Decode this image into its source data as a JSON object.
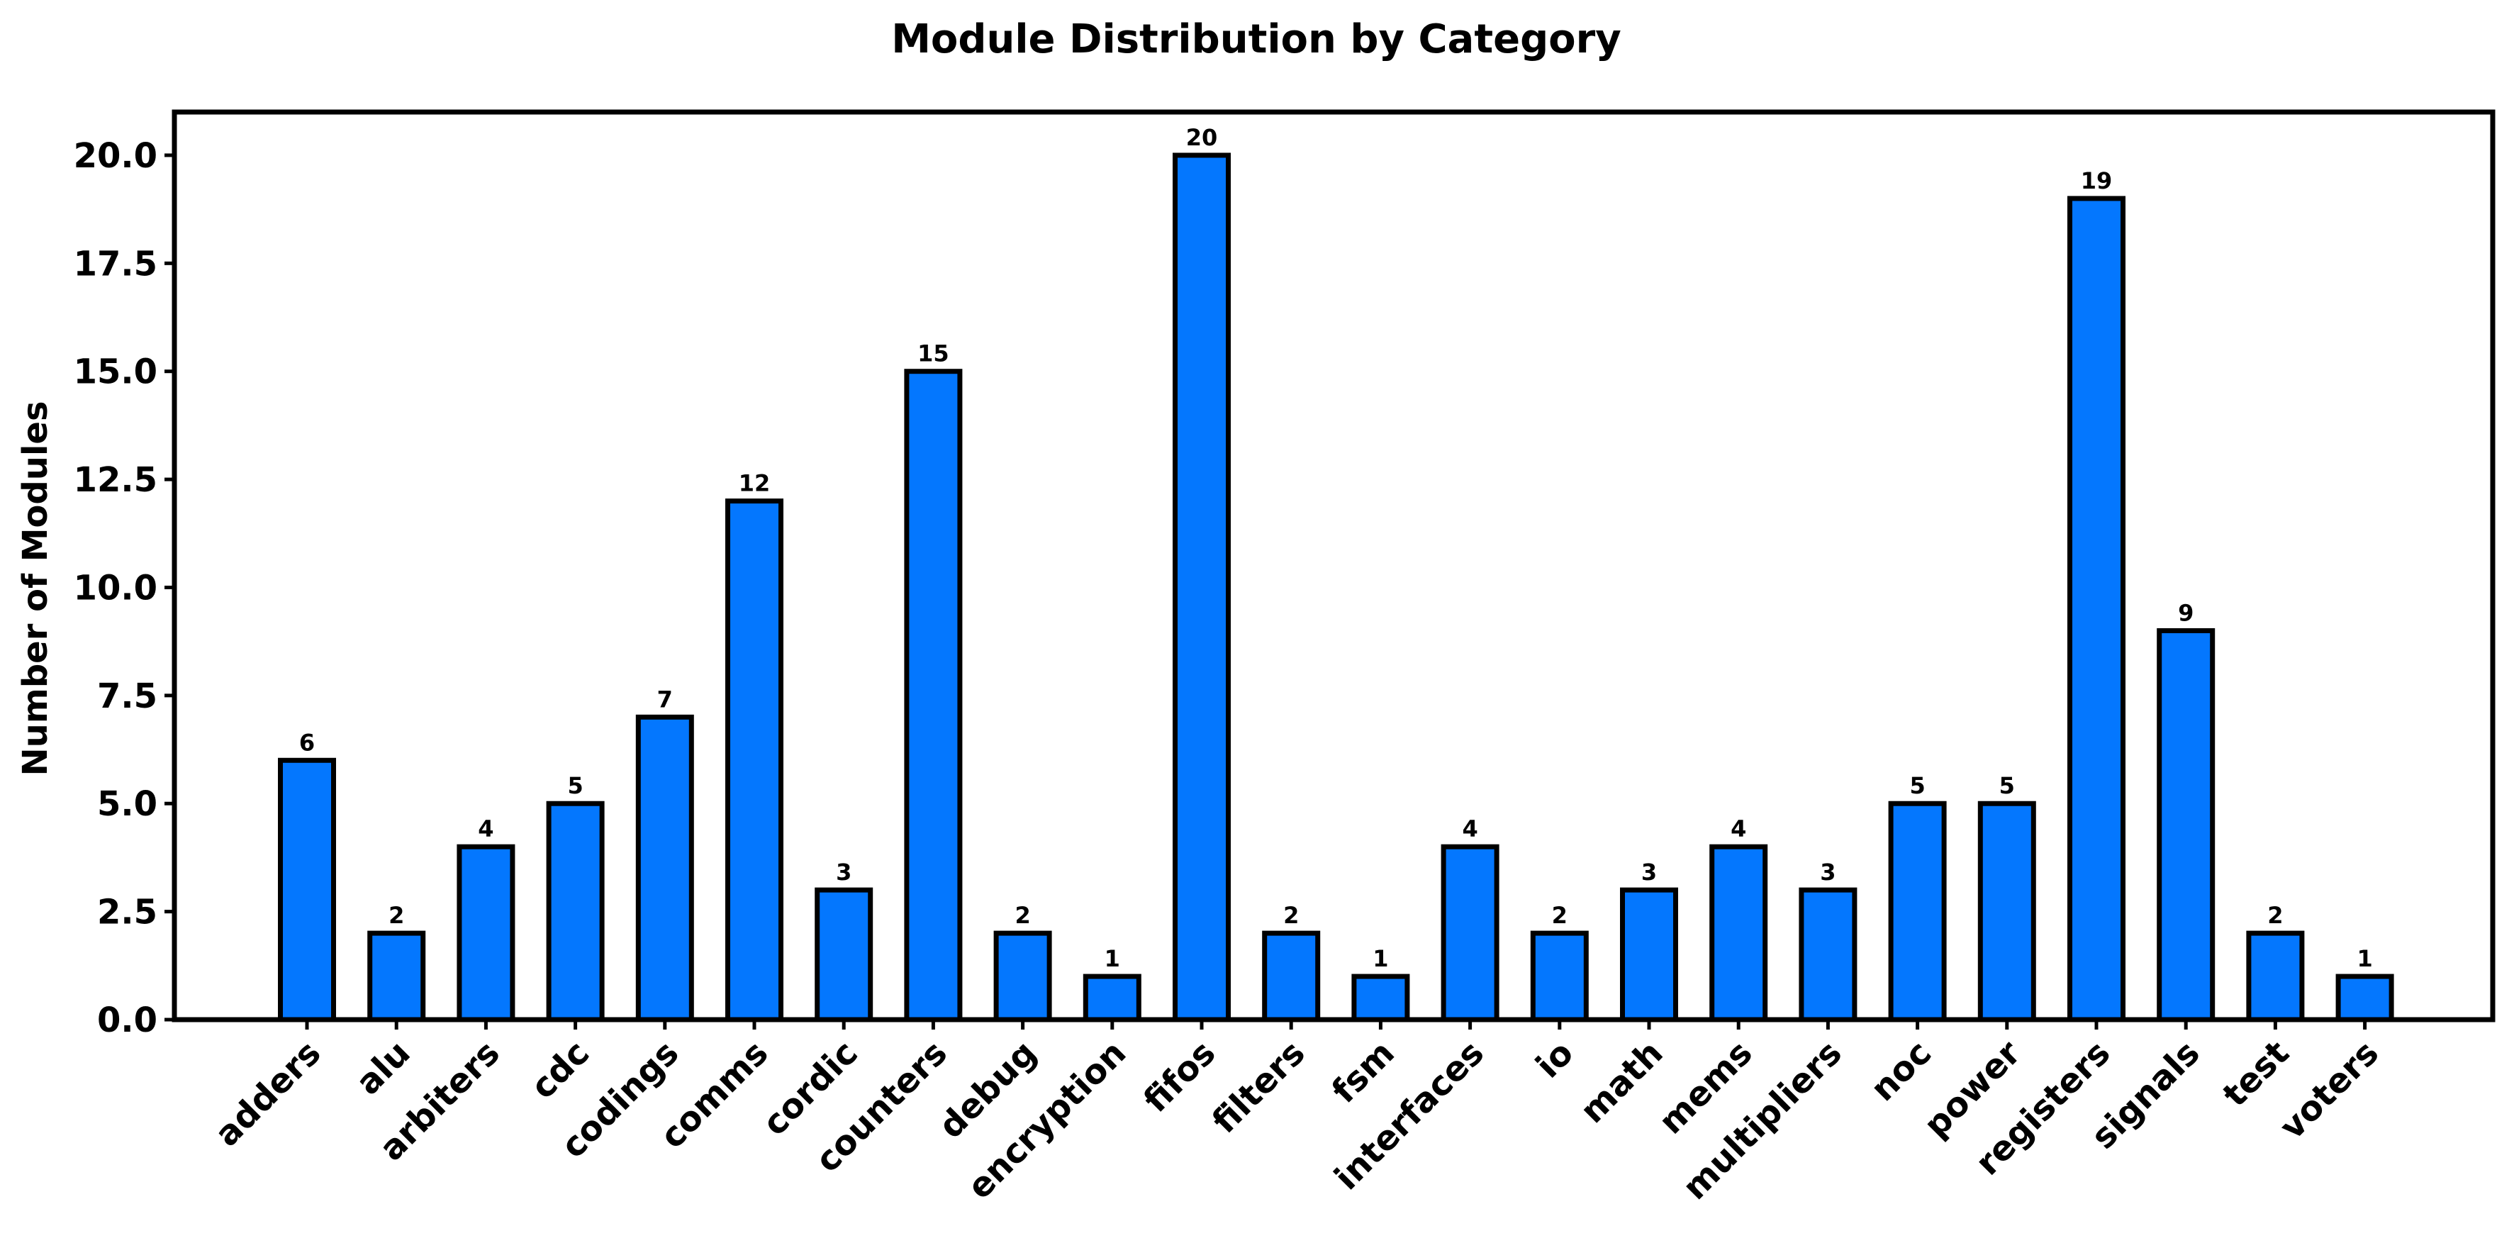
{
  "chart_data": {
    "type": "bar",
    "title": "Module Distribution by Category",
    "xlabel": "",
    "ylabel": "Number of Modules",
    "categories": [
      "adders",
      "alu",
      "arbiters",
      "cdc",
      "codings",
      "comms",
      "cordic",
      "counters",
      "debug",
      "encryption",
      "fifos",
      "filters",
      "fsm",
      "interfaces",
      "io",
      "math",
      "mems",
      "multipliers",
      "noc",
      "power",
      "registers",
      "signals",
      "test",
      "voters"
    ],
    "values": [
      6,
      2,
      4,
      5,
      7,
      12,
      3,
      15,
      2,
      1,
      20,
      2,
      1,
      4,
      2,
      3,
      4,
      3,
      5,
      5,
      19,
      9,
      2,
      1
    ],
    "ylim": [
      0,
      21
    ],
    "yticks": [
      "0.0",
      "2.5",
      "5.0",
      "7.5",
      "10.0",
      "12.5",
      "15.0",
      "17.5",
      "20.0"
    ],
    "data_labels": [
      "6",
      "2",
      "4",
      "5",
      "7",
      "12",
      "3",
      "15",
      "2",
      "1",
      "20",
      "2",
      "1",
      "4",
      "2",
      "3",
      "4",
      "3",
      "5",
      "5",
      "19",
      "9",
      "2",
      "1"
    ],
    "grid": false,
    "legend": "none",
    "colors": {
      "bar_fill": "#0477fe",
      "bar_edge": "#000000",
      "axes": "#000000",
      "background": "#ffffff"
    }
  }
}
